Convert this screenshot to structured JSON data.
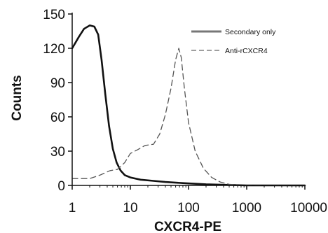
{
  "chart_data": {
    "type": "line",
    "xlabel": "CXCR4-PE",
    "ylabel": "Counts",
    "x_scale": "log",
    "xlim": [
      1,
      10000
    ],
    "ylim": [
      0,
      150
    ],
    "x_ticks": [
      "1",
      "10",
      "100",
      "1000",
      "10000"
    ],
    "y_ticks": [
      "0",
      "30",
      "60",
      "90",
      "120",
      "150"
    ],
    "grid": false,
    "legend_position": "top-right",
    "series": [
      {
        "name": "Secondary only",
        "style": "solid",
        "color": "#111111",
        "x": [
          1,
          1.3,
          1.6,
          2.0,
          2.4,
          2.8,
          3.2,
          3.7,
          4.3,
          5.0,
          5.8,
          6.8,
          8.0,
          10,
          15,
          25,
          40,
          80,
          200,
          1000,
          10000
        ],
        "y": [
          120,
          130,
          137,
          140,
          139,
          132,
          110,
          80,
          52,
          32,
          20,
          13,
          9,
          7,
          5,
          4,
          3,
          2,
          1,
          0,
          0
        ]
      },
      {
        "name": "Anti-rCXCR4",
        "style": "dashed",
        "color": "#555555",
        "x": [
          1,
          2,
          3,
          4.5,
          6,
          8,
          10,
          13,
          18,
          25,
          32,
          40,
          50,
          60,
          68,
          75,
          85,
          100,
          130,
          180,
          250,
          350,
          500,
          800,
          2000,
          10000
        ],
        "y": [
          6,
          6,
          9,
          13,
          14,
          20,
          28,
          31,
          35,
          36,
          45,
          62,
          85,
          110,
          120,
          112,
          85,
          55,
          30,
          15,
          7,
          3,
          1,
          0,
          0,
          0
        ]
      }
    ]
  }
}
